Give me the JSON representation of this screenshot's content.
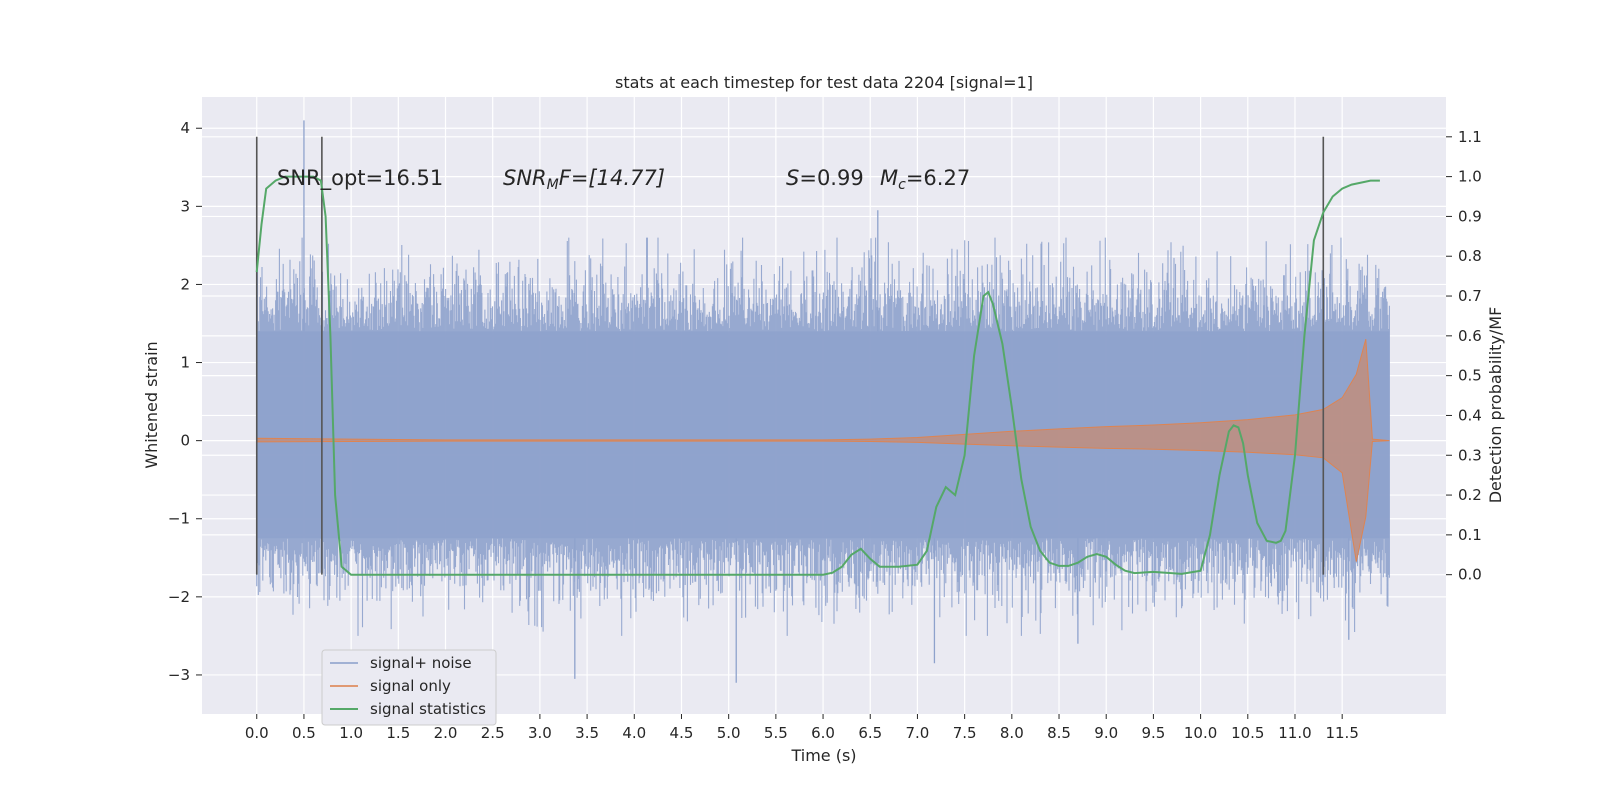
{
  "chart_data": {
    "type": "line",
    "title": "stats at each timestep for test data 2204 [signal=1]",
    "xlabel": "Time (s)",
    "ylabel_left": "Whitened strain",
    "ylabel_right": "Detection probability/MF",
    "xlim": [
      -0.58,
      12.6
    ],
    "ylim_left": [
      -3.5,
      4.4
    ],
    "ylim_right": [
      -0.35,
      1.2
    ],
    "x_ticks": [
      "0.0",
      "0.5",
      "1.0",
      "1.5",
      "2.0",
      "2.5",
      "3.0",
      "3.5",
      "4.0",
      "4.5",
      "5.0",
      "5.5",
      "6.0",
      "6.5",
      "7.0",
      "7.5",
      "8.0",
      "8.5",
      "9.0",
      "9.5",
      "10.0",
      "10.5",
      "11.0",
      "11.5"
    ],
    "y_ticks_left": [
      "−3",
      "−2",
      "−1",
      "0",
      "1",
      "2",
      "3",
      "4"
    ],
    "y_ticks_right": [
      "0.0",
      "0.1",
      "0.2",
      "0.3",
      "0.4",
      "0.5",
      "0.6",
      "0.7",
      "0.8",
      "0.9",
      "1.0",
      "1.1"
    ],
    "grid": true,
    "legend_position": "lower-left",
    "annotations": {
      "snr_opt": "SNR_opt=16.51",
      "snr_mf_label": "SNR",
      "snr_mf_sub": "M",
      "snr_mf_rest": "F=[14.77]",
      "s_label": "S",
      "s_value": "=0.99",
      "mc_label": "M",
      "mc_sub": "c",
      "mc_value": "=6.27"
    },
    "vertical_markers": [
      0.0,
      0.69,
      11.3
    ],
    "series": [
      {
        "name": "signal+ noise",
        "color": "#8ea2cc",
        "axis": "left",
        "envelope": {
          "x": [
            0.0,
            12.0
          ],
          "typical_band": [
            -1.25,
            1.4
          ],
          "min": -3.1,
          "max": 4.1
        },
        "spikes": [
          {
            "x": 0.5,
            "y": 4.1
          },
          {
            "x": 3.37,
            "y": -3.05
          },
          {
            "x": 5.08,
            "y": -3.1
          },
          {
            "x": 6.58,
            "y": 2.95
          },
          {
            "x": 7.18,
            "y": -2.85
          },
          {
            "x": 8.7,
            "y": -2.6
          },
          {
            "x": 11.57,
            "y": -2.55
          }
        ]
      },
      {
        "name": "signal only",
        "color": "#dd8452",
        "axis": "left",
        "x": [
          0.0,
          1.0,
          2.0,
          3.0,
          4.0,
          5.0,
          6.0,
          6.5,
          7.0,
          7.5,
          8.0,
          8.5,
          9.0,
          9.5,
          10.0,
          10.5,
          11.0,
          11.3,
          11.5,
          11.65,
          11.75,
          11.82,
          12.0
        ],
        "amplitude": [
          0.03,
          0.02,
          0.01,
          0.01,
          0.01,
          0.01,
          0.01,
          0.02,
          0.04,
          0.08,
          0.12,
          0.15,
          0.18,
          0.2,
          0.23,
          0.27,
          0.33,
          0.4,
          0.55,
          0.85,
          1.3,
          0.02,
          0.0
        ]
      },
      {
        "name": "signal statistics",
        "color": "#55a868",
        "axis": "right",
        "x": [
          0.0,
          0.05,
          0.1,
          0.2,
          0.3,
          0.4,
          0.5,
          0.6,
          0.68,
          0.73,
          0.78,
          0.83,
          0.9,
          1.0,
          2.0,
          3.0,
          4.0,
          5.0,
          5.5,
          6.0,
          6.1,
          6.2,
          6.3,
          6.4,
          6.5,
          6.6,
          6.8,
          7.0,
          7.1,
          7.2,
          7.3,
          7.35,
          7.4,
          7.5,
          7.6,
          7.7,
          7.75,
          7.8,
          7.9,
          8.0,
          8.1,
          8.2,
          8.3,
          8.4,
          8.5,
          8.6,
          8.7,
          8.8,
          8.9,
          9.0,
          9.1,
          9.2,
          9.3,
          9.5,
          9.8,
          10.0,
          10.1,
          10.2,
          10.3,
          10.35,
          10.4,
          10.45,
          10.5,
          10.6,
          10.7,
          10.8,
          10.85,
          10.9,
          11.0,
          11.1,
          11.2,
          11.3,
          11.4,
          11.5,
          11.6,
          11.7,
          11.8,
          11.9
        ],
        "y": [
          0.76,
          0.88,
          0.97,
          0.99,
          1.0,
          1.0,
          1.0,
          1.0,
          0.99,
          0.9,
          0.6,
          0.2,
          0.02,
          0.0,
          0.0,
          0.0,
          0.0,
          0.0,
          0.0,
          0.0,
          0.005,
          0.02,
          0.05,
          0.065,
          0.04,
          0.02,
          0.02,
          0.025,
          0.06,
          0.17,
          0.22,
          0.21,
          0.2,
          0.3,
          0.55,
          0.7,
          0.71,
          0.68,
          0.58,
          0.42,
          0.24,
          0.12,
          0.06,
          0.03,
          0.022,
          0.022,
          0.03,
          0.045,
          0.052,
          0.045,
          0.025,
          0.01,
          0.004,
          0.007,
          0.002,
          0.01,
          0.1,
          0.25,
          0.36,
          0.375,
          0.37,
          0.33,
          0.25,
          0.13,
          0.085,
          0.08,
          0.085,
          0.11,
          0.3,
          0.6,
          0.84,
          0.91,
          0.95,
          0.97,
          0.98,
          0.985,
          0.99,
          0.99
        ]
      }
    ]
  }
}
